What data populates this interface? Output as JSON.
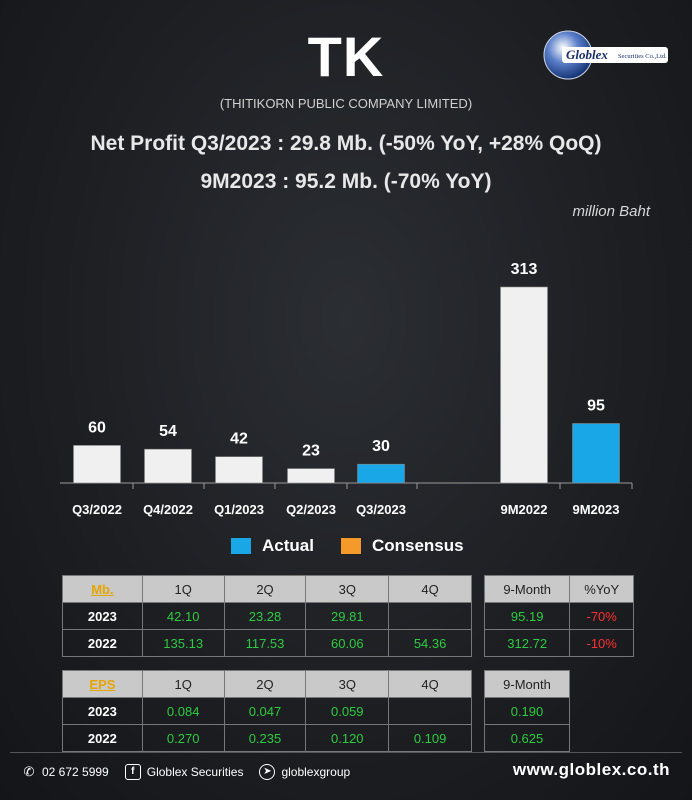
{
  "header": {
    "ticker": "TK",
    "company": "(THITIKORN PUBLIC COMPANY LIMITED)",
    "headline_line1": "Net Profit  Q3/2023 : 29.8 Mb. (-50% YoY, +28% QoQ)",
    "headline_line2": "9M2023 : 95.2 Mb. (-70% YoY)",
    "unit": "million Baht"
  },
  "logo": {
    "text": "Globlex",
    "subtext": "Securities Co.,Ltd."
  },
  "chart_data": {
    "type": "bar",
    "categories": [
      "Q3/2022",
      "Q4/2022",
      "Q1/2023",
      "Q2/2023",
      "Q3/2023",
      "9M2022",
      "9M2023"
    ],
    "values": [
      60,
      54,
      42,
      23,
      30,
      313,
      95
    ],
    "labels": [
      "60",
      "54",
      "42",
      "23",
      "30",
      "313",
      "95"
    ],
    "colors": [
      "#f0f0f0",
      "#f0f0f0",
      "#f0f0f0",
      "#f0f0f0",
      "#1aa7e8",
      "#f0f0f0",
      "#1aa7e8"
    ],
    "ylim": [
      0,
      313
    ],
    "legend": [
      {
        "name": "Actual",
        "color": "#1aa7e8"
      },
      {
        "name": "Consensus",
        "color": "#f39a2b"
      }
    ]
  },
  "profit_table": {
    "corner": "Mb.",
    "columns": [
      "1Q",
      "2Q",
      "3Q",
      "4Q"
    ],
    "rows": [
      {
        "year": "2023",
        "values": [
          "42.10",
          "23.28",
          "29.81",
          ""
        ]
      },
      {
        "year": "2022",
        "values": [
          "135.13",
          "117.53",
          "60.06",
          "54.36"
        ]
      }
    ]
  },
  "profit_summary": {
    "columns": [
      "9-Month",
      "%YoY"
    ],
    "rows": [
      {
        "values": [
          "95.19",
          "-70%"
        ]
      },
      {
        "values": [
          "312.72",
          "-10%"
        ]
      }
    ]
  },
  "eps_table": {
    "corner": "EPS",
    "columns": [
      "1Q",
      "2Q",
      "3Q",
      "4Q"
    ],
    "rows": [
      {
        "year": "2023",
        "values": [
          "0.084",
          "0.047",
          "0.059",
          ""
        ]
      },
      {
        "year": "2022",
        "values": [
          "0.270",
          "0.235",
          "0.120",
          "0.109"
        ]
      }
    ]
  },
  "eps_summary": {
    "columns": [
      "9-Month"
    ],
    "rows": [
      {
        "values": [
          "0.190"
        ]
      },
      {
        "values": [
          "0.625"
        ]
      }
    ]
  },
  "footer": {
    "phone": "02 672 5999",
    "facebook": "Globlex Securities",
    "telegram": "globlexgroup",
    "website": "www.globlex.co.th"
  }
}
